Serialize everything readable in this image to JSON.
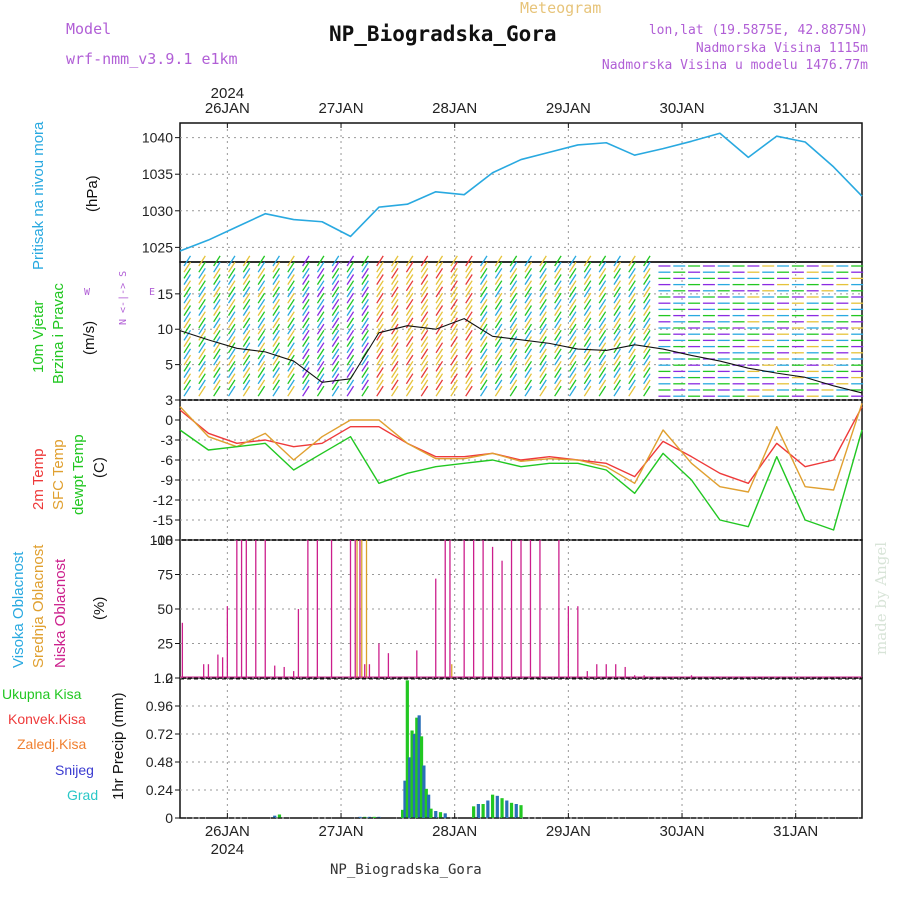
{
  "header": {
    "model_label": "Model",
    "model_name": "wrf-nmm_v3.9.1  e1km",
    "product": "Meteogram",
    "station": "NP_Biogradska_Gora",
    "coords": "lon,lat (19.5875E, 42.8875N)",
    "elevation": "Nadmorska Visina 1115m",
    "model_elevation": "Nadmorska Visina u modelu 1476.77m",
    "footer_station": "NP_Biogradska_Gora",
    "credit": "made by Angel"
  },
  "axis": {
    "year": "2024",
    "days": [
      "26JAN",
      "27JAN",
      "28JAN",
      "29JAN",
      "30JAN",
      "31JAN"
    ]
  },
  "colors": {
    "pressure": "#29a9e0",
    "temp2m": "#ee3a3a",
    "sfc": "#e0a030",
    "dew": "#22c722",
    "cloud_high": "#29a9e0",
    "cloud_mid": "#d9a12c",
    "cloud_low": "#cc1f8c",
    "precip_total": "#22c722",
    "precip_conv": "#ee3a3a",
    "precip_frz": "#f08030",
    "precip_snow": "#3a3ad0",
    "precip_grad": "#29c7c7",
    "text_purple": "#b15fd6"
  },
  "chart_data": [
    {
      "type": "line",
      "panel": "pressure",
      "ylabel_colored": "Pritisak na nivou mora",
      "ylabel": "(hPa)",
      "ylim": [
        1023,
        1042
      ],
      "yticks": [
        1025,
        1030,
        1035,
        1040
      ],
      "x_hours": [
        0,
        6,
        12,
        18,
        24,
        30,
        36,
        42,
        48,
        54,
        60,
        66,
        72,
        78,
        84,
        90,
        96,
        102,
        108,
        114,
        120,
        126,
        132,
        138,
        144
      ],
      "series": [
        {
          "values": [
            1024.5,
            1026.0,
            1027.8,
            1029.6,
            1028.8,
            1028.5,
            1026.5,
            1030.5,
            1030.9,
            1032.6,
            1032.2,
            1035.2,
            1037.0,
            1038.0,
            1039.0,
            1039.3,
            1037.6,
            1038.5,
            1039.5,
            1040.6,
            1037.3,
            1040.2,
            1039.4,
            1036.0,
            1032.0
          ]
        }
      ]
    },
    {
      "type": "line",
      "panel": "wind",
      "ylabel_colored": [
        "10m Vjetar",
        "Brzina i Pravac"
      ],
      "ylabel": "(m/s)",
      "compass": "N <-|-> S",
      "compass_w": "W",
      "compass_e": "E",
      "ylim": [
        0,
        19.5
      ],
      "yticks": [
        5,
        10,
        15
      ],
      "x_hours": [
        0,
        6,
        12,
        18,
        24,
        30,
        36,
        42,
        48,
        54,
        60,
        66,
        72,
        78,
        84,
        90,
        96,
        102,
        108,
        114,
        120,
        126,
        132,
        138,
        144
      ],
      "series": [
        {
          "values": [
            9.8,
            8.5,
            7.3,
            6.8,
            5.5,
            2.5,
            3.0,
            9.5,
            10.5,
            10.0,
            11.5,
            9.0,
            8.5,
            8.0,
            7.2,
            7.0,
            7.8,
            7.2,
            6.3,
            5.5,
            4.5,
            3.8,
            3.2,
            2.0,
            1.0
          ]
        }
      ]
    },
    {
      "type": "line",
      "panel": "temperature",
      "ylabel_colored": [
        "2m Temp",
        "SFC Temp",
        "dewpt Temp"
      ],
      "ylabel": "(C)",
      "ylim": [
        -18,
        3
      ],
      "yticks": [
        3,
        0,
        -3,
        -6,
        -9,
        -12,
        -15,
        -18
      ],
      "x_hours": [
        0,
        6,
        12,
        18,
        24,
        30,
        36,
        42,
        48,
        54,
        60,
        66,
        72,
        78,
        84,
        90,
        96,
        102,
        108,
        114,
        120,
        126,
        132,
        138,
        144
      ],
      "series": [
        {
          "values": [
            1.5,
            -2.0,
            -3.5,
            -3.0,
            -4.0,
            -3.5,
            -1.0,
            -1.0,
            -3.5,
            -5.5,
            -5.5,
            -5.0,
            -6.0,
            -5.5,
            -6.0,
            -6.5,
            -8.5,
            -3.2,
            -5.5,
            -8.0,
            -9.5,
            -3.5,
            -7.0,
            -6.0,
            2.0
          ]
        },
        {
          "values": [
            2.0,
            -2.5,
            -4.0,
            -2.0,
            -6.0,
            -2.5,
            0.0,
            0.0,
            -3.5,
            -5.8,
            -5.8,
            -5.0,
            -6.2,
            -5.8,
            -6.0,
            -7.0,
            -9.5,
            -1.5,
            -6.5,
            -10.0,
            -10.8,
            -1.0,
            -10.0,
            -10.5,
            2.5
          ]
        },
        {
          "values": [
            -1.5,
            -4.5,
            -4.0,
            -3.5,
            -7.5,
            -5.0,
            -2.5,
            -9.5,
            -8.0,
            -7.0,
            -6.5,
            -6.0,
            -7.0,
            -6.5,
            -6.5,
            -7.5,
            -11.0,
            -5.0,
            -9.0,
            -15.0,
            -16.0,
            -5.5,
            -15.0,
            -16.5,
            -1.5
          ]
        }
      ]
    },
    {
      "type": "bar",
      "panel": "clouds",
      "ylabel_colored": [
        "Visoka Oblacnost",
        "Srednja Oblacnost",
        "Niska Oblacnost"
      ],
      "ylabel": "(%)",
      "ylim": [
        0,
        100
      ],
      "yticks": [
        0,
        25,
        50,
        75,
        100
      ],
      "low_hours": [
        0.5,
        5,
        6,
        8,
        9,
        10,
        12,
        13,
        14,
        16,
        18,
        20,
        22,
        24,
        25,
        27,
        29,
        32,
        36,
        37,
        38,
        39,
        40,
        42,
        44,
        50,
        54,
        56,
        57,
        60,
        62,
        64,
        66,
        68,
        70,
        72,
        74,
        76,
        80,
        82,
        84,
        86,
        88,
        90,
        92,
        94,
        96,
        98,
        100,
        104,
        108,
        112,
        114,
        117,
        119,
        121,
        123,
        126,
        130,
        136
      ],
      "low_values": [
        40,
        10,
        10,
        17,
        15,
        52,
        100,
        100,
        100,
        100,
        100,
        9,
        8,
        5,
        50,
        100,
        100,
        100,
        100,
        100,
        100,
        10,
        10,
        25,
        18,
        20,
        72,
        100,
        100,
        100,
        100,
        100,
        95,
        85,
        100,
        100,
        100,
        100,
        100,
        52,
        52,
        5,
        10,
        10,
        10,
        8,
        2,
        2,
        1,
        1,
        2,
        1,
        1,
        1,
        1,
        1,
        1,
        1,
        1,
        1
      ],
      "mid_hours": [
        37,
        38,
        39,
        57
      ],
      "mid_values": [
        100,
        100,
        100,
        10
      ]
    },
    {
      "type": "bar",
      "panel": "precipitation",
      "legend": [
        "Ukupna Kisa",
        "Konvek.Kisa",
        "Zaledj.Kisa",
        "Snijeg",
        "Grad"
      ],
      "ylabel": "1hr Precip (mm)",
      "ylim": [
        0,
        1.2
      ],
      "yticks": [
        0,
        0.24,
        0.48,
        0.72,
        0.96,
        1.2
      ],
      "hours": [
        20,
        21,
        38,
        39,
        40,
        41,
        42,
        47,
        47.5,
        48,
        48.5,
        49,
        49.5,
        50,
        50.5,
        51,
        51.5,
        52,
        52.5,
        53,
        54,
        55,
        56,
        62,
        63,
        64,
        65,
        66,
        67,
        68,
        69,
        70,
        71,
        72
      ],
      "values": [
        0.02,
        0.03,
        0.01,
        0.01,
        0.01,
        0.01,
        0.01,
        0.07,
        0.32,
        1.18,
        0.52,
        0.75,
        0.72,
        0.86,
        0.88,
        0.7,
        0.45,
        0.25,
        0.2,
        0.08,
        0.06,
        0.05,
        0.04,
        0.1,
        0.12,
        0.12,
        0.15,
        0.2,
        0.19,
        0.17,
        0.15,
        0.13,
        0.12,
        0.11
      ]
    }
  ]
}
